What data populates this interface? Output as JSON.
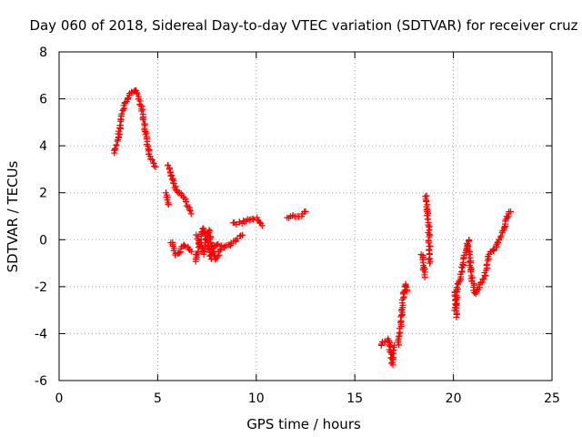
{
  "chart_data": {
    "type": "scatter",
    "title": "Day 060 of 2018, Sidereal Day-to-day VTEC variation (SDTVAR) for receiver cruz",
    "xlabel": "GPS time / hours",
    "ylabel": "SDTVAR / TECUs",
    "xlim": [
      0,
      25
    ],
    "ylim": [
      -6,
      8
    ],
    "xticks": [
      0,
      5,
      10,
      15,
      20,
      25
    ],
    "yticks": [
      -6,
      -4,
      -2,
      0,
      2,
      4,
      6,
      8
    ],
    "grid": true,
    "marker": "+",
    "color": "#ff0000",
    "segments": [
      [
        [
          2.8,
          3.7
        ],
        [
          3.0,
          4.3
        ],
        [
          3.2,
          5.4
        ],
        [
          3.4,
          5.9
        ],
        [
          3.6,
          6.2
        ],
        [
          3.8,
          6.4
        ],
        [
          4.0,
          6.2
        ],
        [
          4.2,
          5.6
        ],
        [
          4.4,
          4.5
        ],
        [
          4.6,
          3.6
        ],
        [
          4.9,
          3.1
        ]
      ],
      [
        [
          5.4,
          2.0
        ],
        [
          5.55,
          1.5
        ]
      ],
      [
        [
          5.5,
          3.2
        ],
        [
          5.7,
          2.7
        ],
        [
          5.9,
          2.2
        ],
        [
          6.1,
          2.0
        ],
        [
          6.4,
          1.7
        ],
        [
          6.7,
          1.1
        ]
      ],
      [
        [
          5.7,
          -0.1
        ],
        [
          5.9,
          -0.6
        ],
        [
          6.1,
          -0.6
        ],
        [
          6.3,
          -0.2
        ],
        [
          6.5,
          -0.3
        ],
        [
          6.7,
          -0.5
        ]
      ],
      [
        [
          6.9,
          -0.9
        ],
        [
          7.1,
          -0.3
        ],
        [
          7.3,
          0.5
        ],
        [
          7.5,
          0.0
        ],
        [
          7.7,
          -0.8
        ],
        [
          7.9,
          -0.3
        ],
        [
          8.1,
          -0.2
        ],
        [
          8.4,
          -0.3
        ],
        [
          8.7,
          -0.2
        ],
        [
          9.0,
          0.0
        ],
        [
          9.3,
          0.2
        ]
      ],
      [
        [
          7.0,
          0.2
        ],
        [
          7.3,
          -0.6
        ],
        [
          7.6,
          0.4
        ],
        [
          7.9,
          -0.9
        ],
        [
          8.2,
          -0.4
        ]
      ],
      [
        [
          8.8,
          0.7
        ],
        [
          9.1,
          0.7
        ],
        [
          9.4,
          0.8
        ],
        [
          9.7,
          0.9
        ],
        [
          10.0,
          0.9
        ],
        [
          10.3,
          0.6
        ]
      ],
      [
        [
          11.6,
          0.9
        ],
        [
          11.9,
          1.0
        ],
        [
          12.2,
          1.0
        ],
        [
          12.5,
          1.2
        ]
      ],
      [
        [
          16.3,
          -4.5
        ],
        [
          16.7,
          -4.2
        ],
        [
          16.9,
          -5.3
        ],
        [
          17.0,
          -4.5
        ]
      ],
      [
        [
          17.2,
          -4.5
        ],
        [
          17.35,
          -3.4
        ],
        [
          17.45,
          -2.5
        ],
        [
          17.55,
          -1.9
        ],
        [
          17.65,
          -2.2
        ]
      ],
      [
        [
          18.4,
          -0.6
        ],
        [
          18.5,
          -1.2
        ],
        [
          18.55,
          -1.6
        ]
      ],
      [
        [
          18.6,
          1.9
        ],
        [
          18.7,
          1.0
        ],
        [
          18.75,
          0.6
        ],
        [
          18.8,
          -1.0
        ]
      ],
      [
        [
          20.1,
          -3.0
        ],
        [
          20.2,
          -2.0
        ],
        [
          20.4,
          -1.4
        ],
        [
          20.6,
          -0.6
        ],
        [
          20.75,
          0.0
        ],
        [
          20.9,
          -1.5
        ],
        [
          21.1,
          -2.3
        ],
        [
          21.3,
          -2.0
        ],
        [
          21.6,
          -1.5
        ],
        [
          21.8,
          -0.6
        ],
        [
          22.0,
          -0.5
        ],
        [
          22.2,
          -0.3
        ],
        [
          22.4,
          0.2
        ],
        [
          22.6,
          0.6
        ],
        [
          22.8,
          1.1
        ],
        [
          22.9,
          1.2
        ]
      ],
      [
        [
          20.05,
          -2.2
        ],
        [
          20.15,
          -3.3
        ]
      ]
    ]
  }
}
